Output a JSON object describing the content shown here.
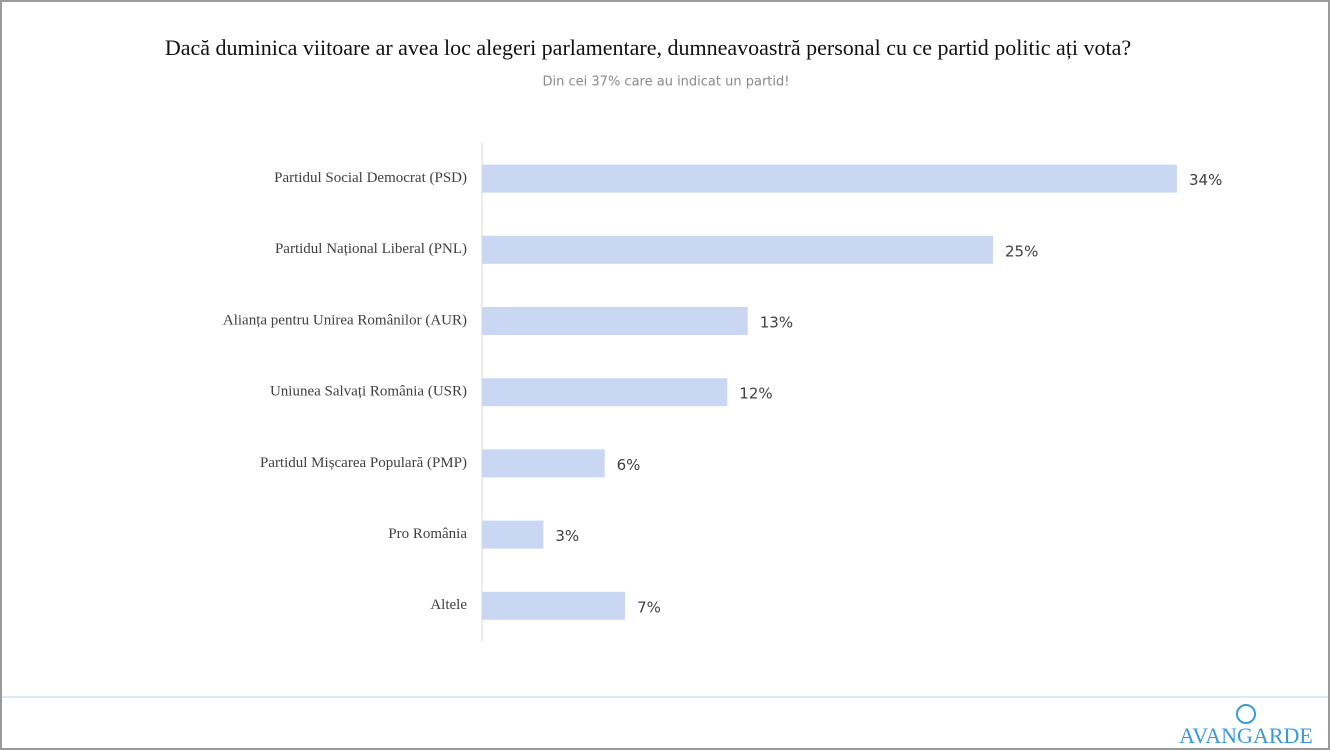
{
  "chart_data": {
    "type": "bar",
    "orientation": "horizontal",
    "title": "Dacă duminica viitoare ar avea loc alegeri parlamentare, dumneavoastră personal cu ce partid politic ați vota?",
    "subtitle": "Din cei 37% care au indicat un partid!",
    "categories": [
      "Partidul Social Democrat (PSD)",
      "Partidul Național Liberal (PNL)",
      "Alianța pentru Unirea Românilor (AUR)",
      "Uniunea Salvați România (USR)",
      "Partidul Mișcarea Populară (PMP)",
      "Pro România",
      "Altele"
    ],
    "values": [
      34,
      25,
      13,
      12,
      6,
      3,
      7
    ],
    "value_labels": [
      "34%",
      "25%",
      "13%",
      "12%",
      "6%",
      "3%",
      "7%"
    ],
    "color": "#c9d7f2"
  },
  "logo": "AVANGARDE"
}
